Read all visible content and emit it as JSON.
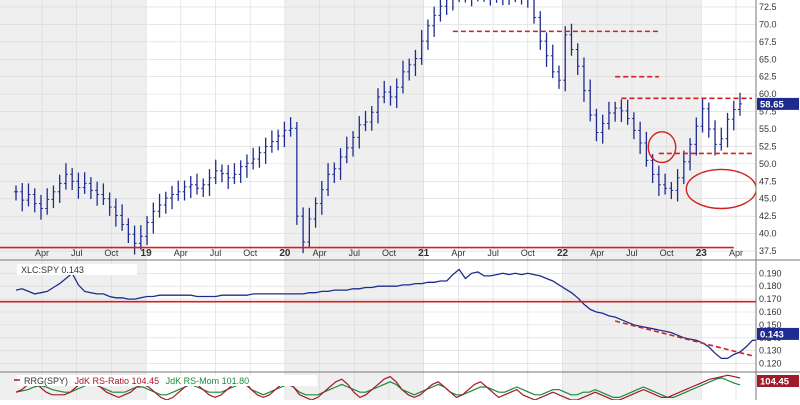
{
  "colors": {
    "price": "#1f2c8f",
    "ratio": "#1f2c8f",
    "support": "#d3201f",
    "last_badge": "#1f2c8f",
    "rs_ratio": "#a31a2a",
    "rs_mom": "#1a8a3c",
    "band": "#efefef",
    "grid": "#d8d8d8"
  },
  "chart_data": [
    {
      "type": "line",
      "style": "ohlc",
      "x_ticks": [
        "Apr",
        "Jul",
        "Oct",
        "19",
        "Apr",
        "Jul",
        "Oct",
        "20",
        "Apr",
        "Jul",
        "Oct",
        "21",
        "Apr",
        "Jul",
        "Oct",
        "22",
        "Apr",
        "Jul",
        "Oct",
        "23",
        "Apr"
      ],
      "bold_ticks": [
        "19",
        "20",
        "21",
        "22",
        "23"
      ],
      "y_ticks": [
        37.5,
        40.0,
        42.5,
        45.0,
        47.5,
        50.0,
        52.5,
        55.0,
        57.5,
        60.0,
        62.5,
        65.0,
        67.5,
        70.0,
        72.5
      ],
      "ylim": [
        36.5,
        73.5
      ],
      "last_value": "58.65",
      "close_series": [
        46.0,
        44.8,
        45.6,
        44.3,
        43.6,
        44.9,
        46.0,
        47.2,
        48.5,
        47.5,
        46.6,
        47.2,
        46.2,
        45.6,
        45.0,
        43.8,
        42.6,
        41.3,
        39.9,
        38.6,
        39.6,
        41.6,
        43.2,
        44.1,
        45.1,
        45.6,
        46.0,
        46.7,
        47.0,
        46.5,
        47.0,
        48.0,
        49.0,
        48.6,
        48.0,
        48.5,
        49.6,
        50.1,
        50.7,
        51.6,
        52.5,
        53.2,
        54.0,
        54.8,
        55.1,
        42.5,
        38.8,
        42.1,
        44.3,
        46.3,
        48.5,
        49.3,
        51.0,
        52.3,
        53.8,
        55.6,
        56.0,
        57.4,
        59.6,
        60.3,
        59.6,
        61.0,
        63.2,
        64.2,
        65.1,
        67.6,
        69.8,
        71.3,
        72.6,
        73.6,
        74.1,
        74.4,
        74.6,
        74.2,
        74.5,
        74.6,
        74.3,
        74.0,
        74.4,
        74.5,
        74.1,
        74.4,
        74.0,
        71.0,
        67.6,
        65.5,
        63.2,
        62.0,
        68.5,
        66.4,
        64.0,
        60.5,
        57.0,
        54.5,
        55.8,
        57.3,
        58.0,
        57.6,
        56.5,
        54.8,
        53.0,
        50.5,
        48.5,
        47.0,
        46.5,
        46.2,
        48.0,
        50.3,
        52.8,
        55.4,
        57.9,
        55.0,
        52.8,
        53.6,
        56.4,
        57.8,
        58.6
      ],
      "lines": [
        {
          "style": "solid",
          "from": [
            0,
            38.0
          ],
          "to": [
            115,
            38.0
          ]
        },
        {
          "style": "dashed",
          "from": [
            70,
            69.0
          ],
          "to": [
            103,
            69.0
          ]
        },
        {
          "style": "dashed",
          "from": [
            96,
            62.5
          ],
          "to": [
            103,
            62.5
          ]
        },
        {
          "style": "dashed",
          "from": [
            97,
            59.4
          ],
          "to": [
            132,
            59.4
          ]
        },
        {
          "style": "dashed",
          "from": [
            103,
            51.5
          ],
          "to": [
            120,
            51.5
          ]
        }
      ],
      "ellipses": [
        {
          "x": 103.5,
          "y": 52.4,
          "rx": 2.2,
          "ry": 2.2
        },
        {
          "x": 113.0,
          "y": 46.4,
          "rx": 5.6,
          "ry": 2.8
        },
        {
          "x": 121.0,
          "y": 51.6,
          "rx": 2.2,
          "ry": 1.8
        }
      ]
    },
    {
      "type": "line",
      "legend": "XLC:SPY 0.143",
      "y_ticks": [
        0.12,
        0.13,
        0.14,
        0.15,
        0.16,
        0.17,
        0.18,
        0.19
      ],
      "ylim": [
        0.115,
        0.198
      ],
      "last_value": "0.143",
      "values": [
        0.177,
        0.178,
        0.176,
        0.174,
        0.175,
        0.176,
        0.179,
        0.182,
        0.186,
        0.19,
        0.181,
        0.176,
        0.175,
        0.174,
        0.174,
        0.172,
        0.171,
        0.171,
        0.17,
        0.17,
        0.171,
        0.172,
        0.172,
        0.173,
        0.173,
        0.173,
        0.173,
        0.173,
        0.173,
        0.172,
        0.172,
        0.172,
        0.172,
        0.173,
        0.173,
        0.173,
        0.173,
        0.173,
        0.174,
        0.174,
        0.174,
        0.174,
        0.174,
        0.174,
        0.174,
        0.174,
        0.174,
        0.175,
        0.175,
        0.176,
        0.176,
        0.177,
        0.177,
        0.177,
        0.178,
        0.178,
        0.179,
        0.179,
        0.18,
        0.18,
        0.18,
        0.18,
        0.181,
        0.181,
        0.182,
        0.182,
        0.183,
        0.183,
        0.184,
        0.184,
        0.189,
        0.193,
        0.186,
        0.19,
        0.191,
        0.188,
        0.188,
        0.189,
        0.19,
        0.189,
        0.19,
        0.189,
        0.19,
        0.189,
        0.188,
        0.186,
        0.184,
        0.181,
        0.178,
        0.175,
        0.171,
        0.166,
        0.162,
        0.16,
        0.159,
        0.157,
        0.156,
        0.154,
        0.152,
        0.15,
        0.149,
        0.148,
        0.147,
        0.146,
        0.145,
        0.144,
        0.142,
        0.14,
        0.139,
        0.138,
        0.136,
        0.133,
        0.128,
        0.124,
        0.124,
        0.127,
        0.129,
        0.133,
        0.138,
        0.138,
        0.139,
        0.142,
        0.143
      ],
      "lines": [
        {
          "style": "solid",
          "from": [
            0,
            0.168
          ],
          "to": [
            119,
            0.168
          ]
        },
        {
          "style": "dashed",
          "from": [
            96,
            0.153
          ],
          "to": [
            118,
            0.126
          ]
        }
      ]
    },
    {
      "type": "line",
      "legend_parts": [
        "RRG(SPY)",
        "JdK RS-Ratio 104.45",
        "JdK RS-Mom 101.80"
      ],
      "last_value": "104.45",
      "ylim": [
        96,
        106
      ],
      "rs_ratio": [
        99,
        100,
        102,
        103,
        101,
        99,
        98,
        98,
        98,
        99,
        101,
        103,
        104,
        103,
        101,
        99,
        98,
        97,
        98,
        99,
        101,
        102,
        101,
        99,
        97,
        96,
        97,
        99,
        101,
        103,
        102,
        100,
        98,
        97,
        98,
        100,
        102,
        104,
        103,
        100,
        98,
        97,
        98,
        100,
        102,
        103,
        101,
        98,
        97,
        96,
        97,
        99,
        101,
        103,
        104,
        102,
        99,
        97,
        98,
        100,
        102,
        104,
        105,
        103,
        100,
        98,
        97,
        98,
        100,
        102,
        103,
        101,
        99,
        97,
        98,
        100,
        102,
        103,
        101,
        99,
        97,
        98,
        99,
        100,
        98,
        97,
        96,
        97,
        98,
        99,
        98,
        97,
        96,
        96,
        97,
        98,
        99,
        98,
        97,
        96,
        96,
        97,
        98,
        99,
        100,
        99,
        98,
        97,
        97,
        98,
        99,
        100,
        101,
        102,
        103,
        104,
        104.45,
        105,
        105.5,
        105,
        104.45
      ],
      "rs_mom": [
        99,
        99.5,
        100,
        101,
        101.5,
        101,
        100,
        99.5,
        99,
        99,
        100,
        101,
        102,
        102,
        101,
        100,
        99,
        99,
        99,
        100,
        101,
        101,
        100,
        99,
        98,
        98,
        99,
        100,
        101,
        102,
        101,
        100,
        99,
        99,
        99,
        100,
        101,
        102,
        102,
        100,
        99,
        98,
        99,
        100,
        101,
        102,
        101,
        99,
        98,
        98,
        98,
        99,
        100,
        101,
        102,
        101,
        100,
        99,
        99,
        100,
        101,
        102,
        103,
        102,
        100,
        99,
        98,
        99,
        100,
        101,
        102,
        101,
        99,
        98,
        98,
        99,
        100,
        101,
        101,
        100,
        99,
        99,
        100,
        101,
        100,
        99,
        98,
        98,
        99,
        100,
        100,
        99,
        98,
        98,
        99,
        99,
        100,
        99,
        98,
        97,
        97,
        98,
        99,
        100,
        101,
        100,
        99,
        98,
        97,
        97,
        98,
        99,
        100,
        101,
        102,
        103,
        104,
        104.5,
        103.5,
        102.5,
        101.8
      ]
    }
  ]
}
